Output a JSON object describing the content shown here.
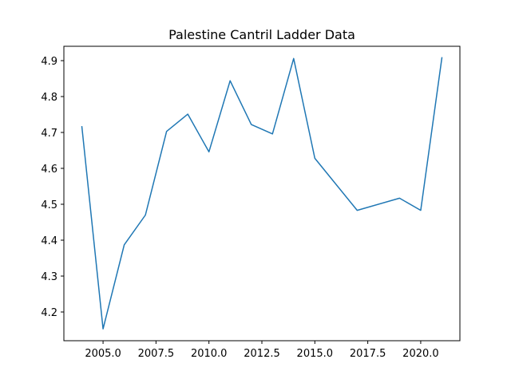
{
  "chart_data": {
    "type": "line",
    "title": "Palestine Cantril Ladder Data",
    "xlabel": "",
    "ylabel": "",
    "xlim": [
      2003.15,
      2021.85
    ],
    "ylim": [
      4.12,
      4.94
    ],
    "grid": false,
    "x_ticks": [
      {
        "value": 2005.0,
        "label": "2005.0"
      },
      {
        "value": 2007.5,
        "label": "2007.5"
      },
      {
        "value": 2010.0,
        "label": "2010.0"
      },
      {
        "value": 2012.5,
        "label": "2012.5"
      },
      {
        "value": 2015.0,
        "label": "2015.0"
      },
      {
        "value": 2017.5,
        "label": "2017.5"
      },
      {
        "value": 2020.0,
        "label": "2020.0"
      }
    ],
    "y_ticks": [
      {
        "value": 4.2,
        "label": "4.2"
      },
      {
        "value": 4.3,
        "label": "4.3"
      },
      {
        "value": 4.4,
        "label": "4.4"
      },
      {
        "value": 4.5,
        "label": "4.5"
      },
      {
        "value": 4.6,
        "label": "4.6"
      },
      {
        "value": 4.7,
        "label": "4.7"
      },
      {
        "value": 4.8,
        "label": "4.8"
      },
      {
        "value": 4.9,
        "label": "4.9"
      }
    ],
    "series": [
      {
        "color": "#1f77b4",
        "x": [
          2004,
          2005,
          2006,
          2007,
          2008,
          2009,
          2010,
          2011,
          2012,
          2013,
          2014,
          2015,
          2017,
          2019,
          2020,
          2021
        ],
        "y": [
          4.716,
          4.153,
          4.387,
          4.47,
          4.703,
          4.751,
          4.646,
          4.844,
          4.722,
          4.696,
          4.906,
          4.628,
          4.483,
          4.517,
          4.483,
          4.908
        ]
      }
    ]
  }
}
